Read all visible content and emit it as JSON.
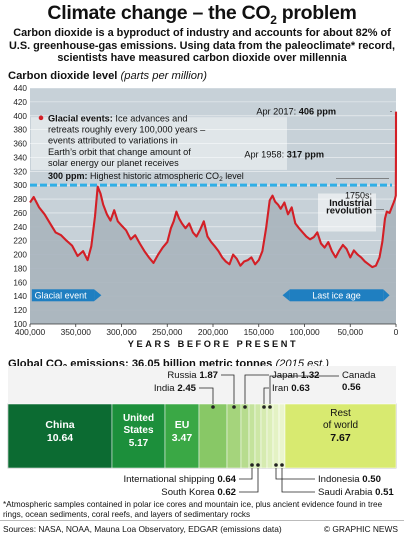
{
  "title": "Climate change – the CO",
  "title_sub": "2",
  "title_end": " problem",
  "intro": "Carbon dioxide is a byproduct of industry and accounts for about 82% of U.S. greenhouse-gas emissions. Using data from the paleoclimate* record, scientists have measured carbon dioxide over millennia",
  "colors": {
    "chart_bg": "#c7d1d8",
    "line": "#d31f26",
    "fill": "#a9b4bd",
    "threshold": "#2eaee6",
    "ice_bar": "#1f7fc1",
    "emissions_bg": "#0d6b34"
  },
  "chart_data": [
    {
      "type": "area",
      "title": "Carbon dioxide level",
      "ylabel_unit": "(parts per million)",
      "xlabel": "YEARS BEFORE PRESENT",
      "xlim": [
        400000,
        0
      ],
      "ylim": [
        100,
        440
      ],
      "x_ticks": [
        "400,000",
        "350,000",
        "300,000",
        "250,000",
        "200,000",
        "150,000",
        "100,000",
        "50,000",
        "0"
      ],
      "y_ticks": [
        "100",
        "120",
        "140",
        "160",
        "180",
        "200",
        "220",
        "240",
        "260",
        "280",
        "300",
        "320",
        "340",
        "360",
        "380",
        "400",
        "420",
        "440"
      ],
      "threshold": 300,
      "series": [
        {
          "x": [
            400000,
            396000,
            390000,
            384000,
            378000,
            372000,
            366000,
            360000,
            354000,
            348000,
            342000,
            337000,
            333000,
            329000,
            326000,
            323000,
            320000,
            316000,
            312000,
            308000,
            304000,
            300000,
            295000,
            290000,
            285000,
            280000,
            275000,
            270000,
            265000,
            260000,
            255000,
            250000,
            246000,
            243000,
            240000,
            237000,
            234000,
            230000,
            226000,
            222000,
            218000,
            214000,
            210000,
            206000,
            202000,
            198000,
            194000,
            190000,
            186000,
            182000,
            178000,
            174000,
            170000,
            166000,
            162000,
            158000,
            154000,
            150000,
            146000,
            142000,
            138000,
            135000,
            132000,
            129000,
            126000,
            122000,
            118000,
            114000,
            110000,
            106000,
            102000,
            98000,
            94000,
            90000,
            86000,
            82000,
            78000,
            74000,
            70000,
            66000,
            62000,
            58000,
            54000,
            50000,
            46000,
            42000,
            38000,
            34000,
            30000,
            26000,
            22000,
            18000,
            15000,
            12000,
            10000,
            7000,
            4000,
            2500,
            1200,
            250,
            59,
            20,
            0
          ],
          "values": [
            275,
            283,
            268,
            258,
            245,
            232,
            228,
            220,
            213,
            198,
            205,
            192,
            212,
            255,
            298,
            288,
            272,
            258,
            249,
            264,
            248,
            242,
            235,
            222,
            228,
            216,
            205,
            196,
            188,
            200,
            210,
            218,
            238,
            248,
            262,
            252,
            245,
            238,
            245,
            232,
            226,
            236,
            248,
            226,
            218,
            212,
            205,
            196,
            190,
            186,
            200,
            194,
            184,
            190,
            192,
            196,
            186,
            192,
            205,
            238,
            278,
            285,
            276,
            272,
            266,
            275,
            258,
            268,
            245,
            238,
            232,
            226,
            222,
            225,
            232,
            216,
            210,
            218,
            205,
            196,
            206,
            214,
            208,
            196,
            206,
            200,
            196,
            190,
            186,
            182,
            184,
            196,
            218,
            252,
            262,
            260,
            270,
            275,
            280,
            285,
            317,
            370,
            406
          ]
        }
      ],
      "annotations": {
        "glacial_events_heading": "Glacial events:",
        "glacial_events_text": "Ice advances and retreats roughly every 100,000 years – events attributed to variations in Earth’s orbit that change amount of solar energy our planet receives",
        "threshold_value": "300 ppm:",
        "threshold_text": "Highest historic atmospheric CO",
        "threshold_sub": "2",
        "threshold_end": " level",
        "apr2017_label": "Apr 2017:",
        "apr2017_value": "406 ppm",
        "apr1958_label": "Apr 1958:",
        "apr1958_value": "317 ppm",
        "revolution_year": "1750s:",
        "revolution_name_1": "Industrial",
        "revolution_name_2": "revolution",
        "glacial_event_bar": "Glacial event",
        "last_ice_age_bar": "Last ice age"
      }
    },
    {
      "type": "bar",
      "title": "Global CO",
      "title_sub": "2",
      "title_end": " emissions: 36.05 billion metric tonnes",
      "title_note": "(2015 est.)",
      "categories": [
        "China",
        "United States",
        "EU",
        "International shipping",
        "South Korea",
        "India",
        "Russia",
        "Japan",
        "Iran",
        "Indonesia",
        "Saudi Arabia",
        "Canada",
        "Rest of world"
      ],
      "values": [
        10.64,
        5.17,
        3.47,
        0.64,
        0.62,
        2.45,
        1.87,
        1.32,
        0.63,
        0.5,
        0.51,
        0.56,
        7.67
      ],
      "labels": {
        "china": "China",
        "china_v": "10.64",
        "us": "United States",
        "us_v": "5.17",
        "eu": "EU",
        "eu_v": "3.47",
        "russia": "Russia",
        "russia_v": "1.87",
        "india": "India",
        "india_v": "2.45",
        "japan": "Japan",
        "japan_v": "1.32",
        "iran": "Iran",
        "iran_v": "0.63",
        "canada": "Canada",
        "canada_v": "0.56",
        "rest": "Rest of world",
        "rest_v": "7.67",
        "shipping": "International shipping",
        "shipping_v": "0.64",
        "korea": "South Korea",
        "korea_v": "0.62",
        "indonesia": "Indonesia",
        "indonesia_v": "0.50",
        "saudi": "Saudi Arabia",
        "saudi_v": "0.51"
      }
    }
  ],
  "footnote": "*Atmospheric samples contained in polar ice cores and mountain ice, plus ancient evidence found in tree rings, ocean sediments, coral reefs, and layers of sedimentary rocks",
  "sources": "Sources: NASA, NOAA, Mauna Loa Observatory, EDGAR (emissions data)",
  "credit": "© GRAPHIC NEWS"
}
